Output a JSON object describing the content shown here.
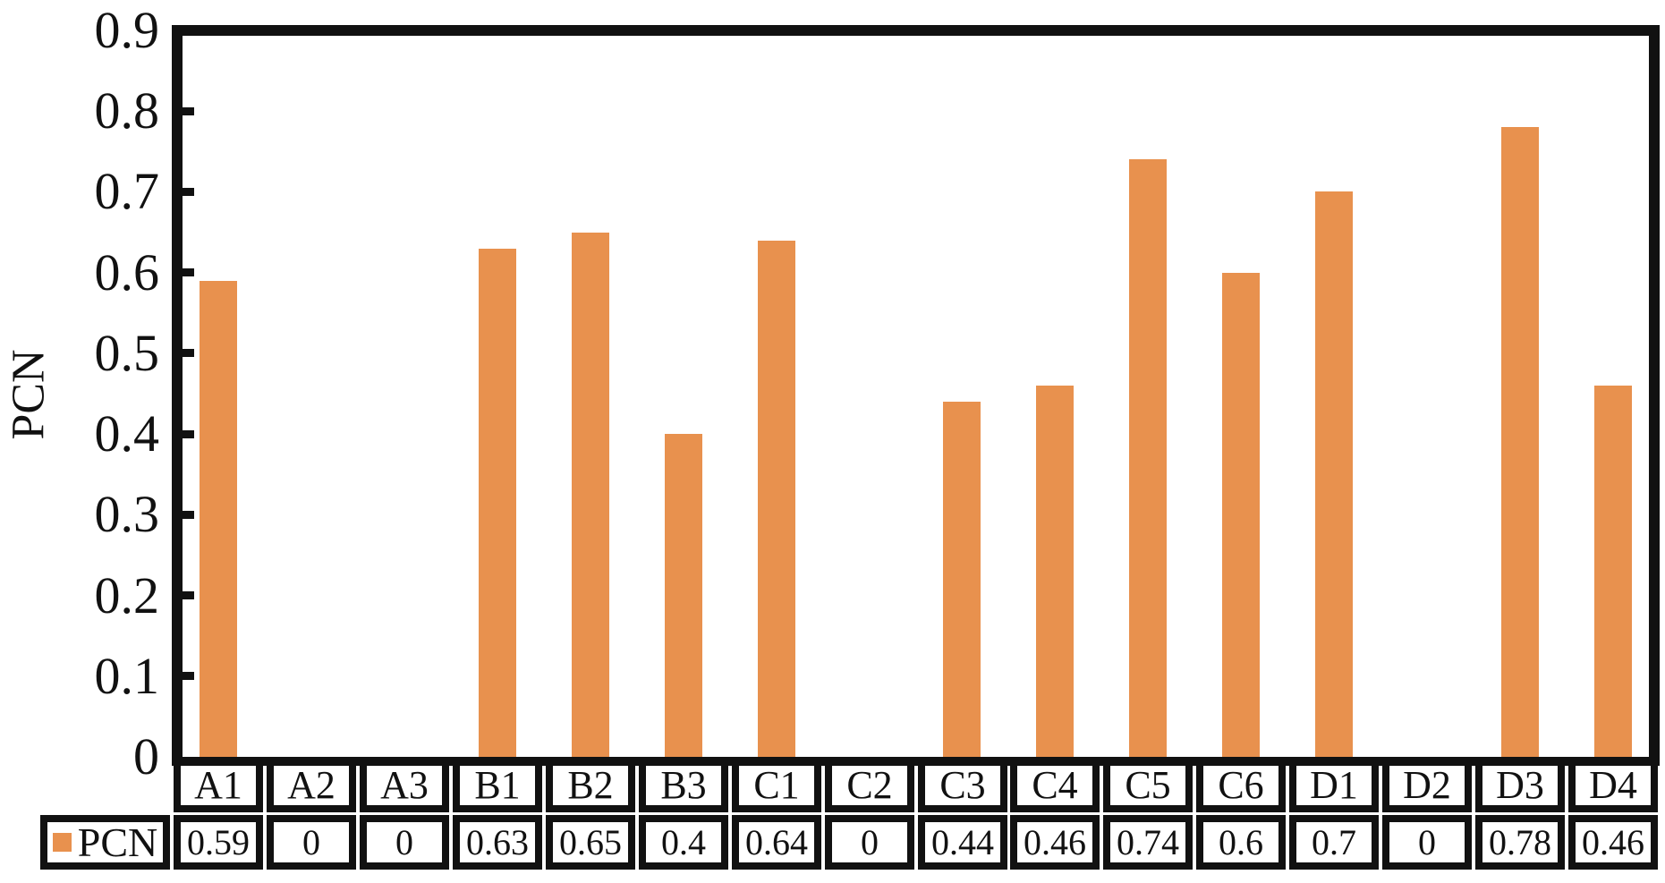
{
  "y_axis": {
    "title": "PCN",
    "tick_labels": [
      "0.9",
      "0.8",
      "0.7",
      "0.6",
      "0.5",
      "0.4",
      "0.3",
      "0.2",
      "0.1",
      "0"
    ]
  },
  "legend": {
    "label": "PCN"
  },
  "colors": {
    "bar": "#E8914E",
    "frame": "#111111"
  },
  "chart_data": {
    "type": "bar",
    "title": "",
    "categories": [
      "A1",
      "A2",
      "A3",
      "B1",
      "B2",
      "B3",
      "C1",
      "C2",
      "C3",
      "C4",
      "C5",
      "C6",
      "D1",
      "D2",
      "D3",
      "D4"
    ],
    "series": [
      {
        "name": "PCN",
        "values": [
          0.59,
          0,
          0,
          0.63,
          0.65,
          0.4,
          0.64,
          0,
          0.44,
          0.46,
          0.74,
          0.6,
          0.7,
          0,
          0.78,
          0.46
        ]
      }
    ],
    "value_labels": [
      "0.59",
      "0",
      "0",
      "0.63",
      "0.65",
      "0.4",
      "0.64",
      "0",
      "0.44",
      "0.46",
      "0.74",
      "0.6",
      "0.7",
      "0",
      "0.78",
      "0.46"
    ],
    "xlabel": "",
    "ylabel": "PCN",
    "ylim": [
      0,
      0.9
    ],
    "ytick_step": 0.1,
    "grid": false,
    "bar_color": "#E8914E",
    "legend_position": "bottom-left-table"
  }
}
